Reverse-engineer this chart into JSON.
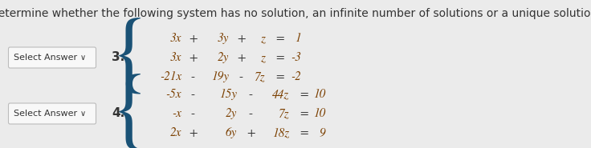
{
  "title": "Determine whether the following system has no solution, an infinite number of solutions or a unique solution.",
  "title_fontsize": 10,
  "bg_color": "#ebebeb",
  "system3": {
    "label": "3.",
    "lines": [
      [
        "3x",
        "+",
        "3y",
        "+",
        "z",
        "=",
        "1"
      ],
      [
        "3x",
        "+",
        "2y",
        "+",
        "z",
        "=",
        "-3"
      ],
      [
        "-21x",
        "-",
        "19y",
        "-",
        "7z",
        "=",
        "-2"
      ]
    ]
  },
  "system4": {
    "label": "4.",
    "lines": [
      [
        "-5x",
        "-",
        "15y",
        "-",
        "44z",
        "=",
        "10"
      ],
      [
        "-x",
        "-",
        "2y",
        "-",
        "7z",
        "=",
        "10"
      ],
      [
        "2x",
        "+",
        "6y",
        "+",
        "18z",
        "=",
        "9"
      ]
    ]
  },
  "select_answer_text": "Select Answer",
  "math_color": "#7B3F00",
  "num_color": "#1a1a8c",
  "text_color": "#333333",
  "button_color": "#f8f8f8",
  "button_border": "#bbbbbb",
  "brace_color": "#1a5276"
}
